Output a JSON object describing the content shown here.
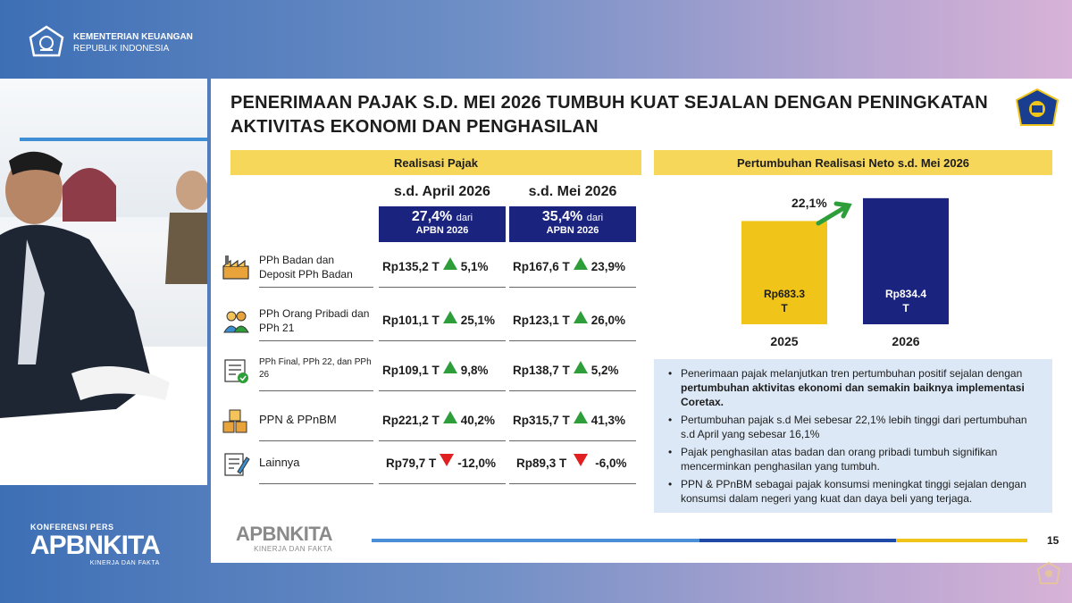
{
  "ministry": {
    "name": "KEMENTERIAN KEUANGAN",
    "country": "REPUBLIK INDONESIA"
  },
  "conference": {
    "kicker": "KONFERENSI PERS",
    "brand": "APBNKITA",
    "tagline": "KINERJA DAN FAKTA"
  },
  "slide": {
    "title_line1": "PENERIMAAN PAJAK S.D. MEI 2026 TUMBUH KUAT SEJALAN DENGAN PENINGKATAN",
    "title_line2": "AKTIVITAS EKONOMI DAN PENGHASILAN",
    "left_header": "Realisasi Pajak",
    "right_header": "Pertumbuhan Realisasi Neto s.d. Mei 2026",
    "columns": [
      {
        "heading": "s.d. April 2026",
        "pct": "27,4%",
        "dari": "dari",
        "apbn": "APBN 2026"
      },
      {
        "heading": "s.d. Mei 2026",
        "pct": "35,4%",
        "dari": "dari",
        "apbn": "APBN 2026"
      }
    ],
    "rows": [
      {
        "label": "PPh Badan dan Deposit PPh Badan",
        "icon": "factory-icon",
        "apr_val": "Rp135,2 T",
        "apr_dir": "up",
        "apr_pct": "5,1%",
        "mei_val": "Rp167,6 T",
        "mei_dir": "up",
        "mei_pct": "23,9%"
      },
      {
        "label": "PPh Orang Pribadi dan PPh 21",
        "icon": "people-icon",
        "apr_val": "Rp101,1 T",
        "apr_dir": "up",
        "apr_pct": "25,1%",
        "mei_val": "Rp123,1 T",
        "mei_dir": "up",
        "mei_pct": "26,0%"
      },
      {
        "label": "PPh Final, PPh 22, dan PPh 26",
        "icon": "document-check-icon",
        "apr_val": "Rp109,1 T",
        "apr_dir": "up",
        "apr_pct": "9,8%",
        "mei_val": "Rp138,7 T",
        "mei_dir": "up",
        "mei_pct": "5,2%"
      },
      {
        "label": "PPN & PPnBM",
        "icon": "boxes-icon",
        "apr_val": "Rp221,2 T",
        "apr_dir": "up",
        "apr_pct": "40,2%",
        "mei_val": "Rp315,7 T",
        "mei_dir": "up",
        "mei_pct": "41,3%"
      },
      {
        "label": "Lainnya",
        "icon": "clipboard-edit-icon",
        "apr_val": "Rp79,7 T",
        "apr_dir": "down",
        "apr_pct": "-12,0%",
        "mei_val": "Rp89,3 T",
        "mei_dir": "down",
        "mei_pct": "-6,0%"
      }
    ],
    "growth_label": "22,1%",
    "notes": [
      {
        "pre": "Penerimaan pajak melanjutkan tren pertumbuhan positif sejalan dengan ",
        "bold": "pertumbuhan aktivitas ekonomi dan semakin baiknya implementasi Coretax."
      },
      {
        "pre": "Pertumbuhan pajak s.d Mei sebesar 22,1% lebih tinggi dari pertumbuhan s.d April yang sebesar 16,1%",
        "bold": ""
      },
      {
        "pre": "Pajak penghasilan atas badan dan orang pribadi tumbuh signifikan mencerminkan penghasilan yang tumbuh.",
        "bold": ""
      },
      {
        "pre": "PPN & PPnBM sebagai pajak konsumsi meningkat tinggi sejalan dengan konsumsi dalam negeri yang kuat dan daya beli yang terjaga.",
        "bold": ""
      }
    ],
    "footer_brand": "APBNKITA",
    "footer_tagline": "KINERJA DAN FAKTA",
    "page_number": "15"
  },
  "colors": {
    "yellow_bar": "#f0c419",
    "navy_bar": "#1a237e",
    "up": "#2e9e3a",
    "down": "#e02020",
    "header_bg": "#f6d75a"
  },
  "chart_data": {
    "type": "bar",
    "categories": [
      "2025",
      "2026"
    ],
    "values": [
      683.3,
      834.4
    ],
    "value_labels": [
      "Rp683.3 T",
      "Rp834.4 T"
    ],
    "annotation": "22,1%",
    "colors": [
      "#f0c419",
      "#1a237e"
    ],
    "ylim": [
      0,
      900
    ]
  }
}
